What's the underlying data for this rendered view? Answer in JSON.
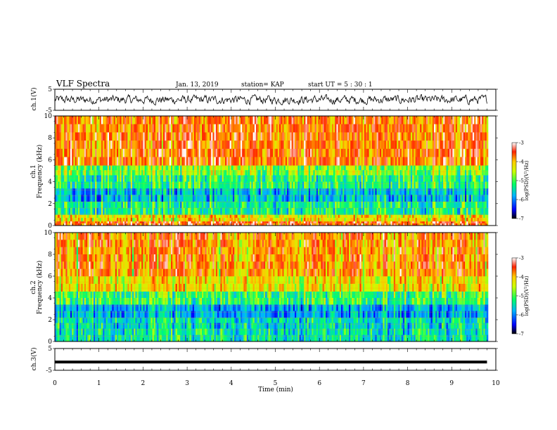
{
  "header": {
    "title": "VLF Spectra",
    "date": "Jan. 13, 2019",
    "station": "station= KAP",
    "start": "start  UT  =   5  : 30 : 1"
  },
  "chart_data": [
    {
      "type": "line",
      "name": "ch1-waveform",
      "ylabel": "ch.1(V)",
      "ylim": [
        -5,
        5
      ],
      "yticks": [
        "5",
        "-5"
      ],
      "xlim": [
        0,
        10
      ],
      "x_end": 9.8,
      "amplitude_range": [
        -2.5,
        2.5
      ]
    },
    {
      "type": "heatmap",
      "name": "ch1-spectrogram",
      "ylabel": "ch.1",
      "ylabel2": "Frequency (kHz)",
      "ylim": [
        0,
        10
      ],
      "yticks": [
        "10",
        "8",
        "6",
        "4",
        "2",
        "0"
      ],
      "xlim": [
        0,
        10
      ],
      "x_end": 9.8,
      "colorbar": {
        "label": "log(PSD)(V²/Hz)",
        "range": [
          -7,
          -3
        ],
        "ticks": [
          "-3",
          "-4",
          "-5",
          "-6",
          "-7"
        ]
      },
      "bands": [
        {
          "from_khz": 0.0,
          "to_khz": 0.4,
          "log_psd": -3.6
        },
        {
          "from_khz": 0.4,
          "to_khz": 1.0,
          "log_psd": -4.3
        },
        {
          "from_khz": 1.0,
          "to_khz": 2.2,
          "log_psd": -5.3
        },
        {
          "from_khz": 2.2,
          "to_khz": 3.4,
          "log_psd": -5.7
        },
        {
          "from_khz": 3.4,
          "to_khz": 4.6,
          "log_psd": -5.2
        },
        {
          "from_khz": 4.6,
          "to_khz": 5.5,
          "log_psd": -4.8
        },
        {
          "from_khz": 5.5,
          "to_khz": 10.0,
          "log_psd": -3.7
        }
      ]
    },
    {
      "type": "heatmap",
      "name": "ch2-spectrogram",
      "ylabel": "ch.2",
      "ylabel2": "Frequency (kHz)",
      "ylim": [
        0,
        10
      ],
      "yticks": [
        "10",
        "8",
        "6",
        "4",
        "2",
        "0"
      ],
      "xlim": [
        0,
        10
      ],
      "x_end": 9.8,
      "colorbar": {
        "label": "log(PSD)(V²/Hz)",
        "range": [
          -7,
          -3
        ],
        "ticks": [
          "-3",
          "-4",
          "-5",
          "-6",
          "-7"
        ]
      },
      "bands": [
        {
          "from_khz": 0.0,
          "to_khz": 1.2,
          "log_psd": -5.4
        },
        {
          "from_khz": 1.2,
          "to_khz": 2.2,
          "log_psd": -5.5
        },
        {
          "from_khz": 2.2,
          "to_khz": 3.4,
          "log_psd": -5.8
        },
        {
          "from_khz": 3.4,
          "to_khz": 4.6,
          "log_psd": -5.1
        },
        {
          "from_khz": 4.6,
          "to_khz": 6.0,
          "log_psd": -4.3
        },
        {
          "from_khz": 6.0,
          "to_khz": 10.0,
          "log_psd": -3.8
        }
      ]
    },
    {
      "type": "line",
      "name": "ch3-waveform",
      "ylabel": "ch.3(V)",
      "ylim": [
        -5,
        5
      ],
      "yticks": [
        "5",
        "-5"
      ],
      "xlim": [
        0,
        10
      ],
      "x_end": 9.8,
      "constant_value": -1.2,
      "xlabel": "Time (min)",
      "xticks": [
        "0",
        "1",
        "2",
        "3",
        "4",
        "5",
        "6",
        "7",
        "8",
        "9",
        "10"
      ]
    }
  ]
}
